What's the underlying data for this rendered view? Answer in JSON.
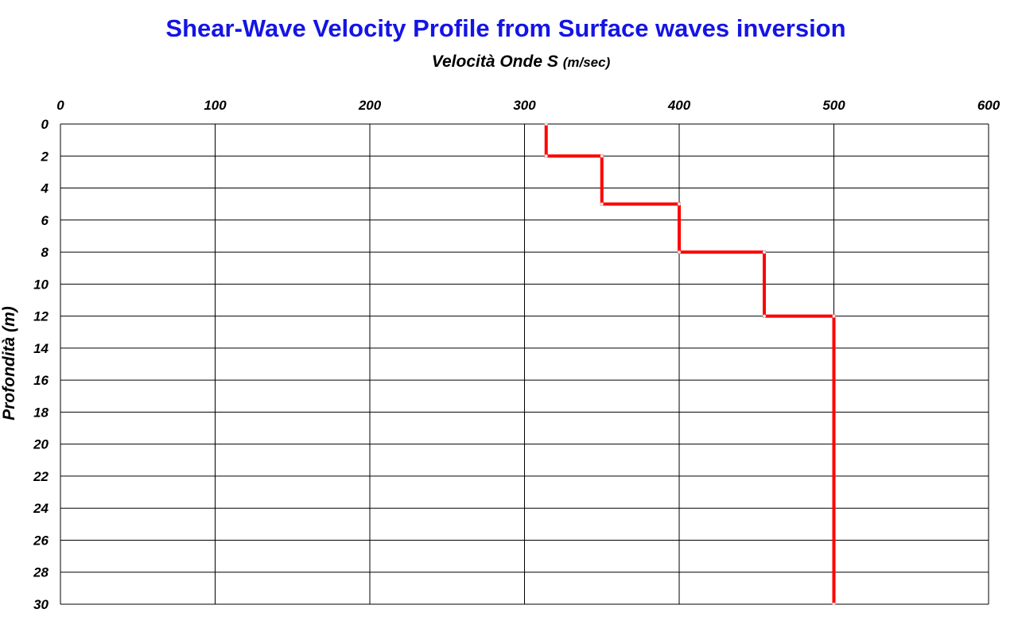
{
  "chart_data": {
    "type": "line",
    "title": "Shear-Wave Velocity Profile from Surface waves inversion",
    "xlabel": "Velocità Onde S",
    "xlabel_unit": "(m/sec)",
    "ylabel": "Profondità",
    "ylabel_unit": "(m)",
    "x_axis_position": "top",
    "y_axis_inverted": true,
    "xlim": [
      0,
      600
    ],
    "ylim": [
      0,
      30
    ],
    "x_ticks": [
      "0",
      "100",
      "200",
      "300",
      "400",
      "500",
      "600"
    ],
    "y_ticks": [
      "0",
      "2",
      "4",
      "6",
      "8",
      "10",
      "12",
      "14",
      "16",
      "18",
      "20",
      "22",
      "24",
      "26",
      "28",
      "30"
    ],
    "grid": true,
    "series": [
      {
        "color": "#ff0000",
        "points": [
          {
            "velocity": 314,
            "depth": 0
          },
          {
            "velocity": 314,
            "depth": 2
          },
          {
            "velocity": 350,
            "depth": 2
          },
          {
            "velocity": 350,
            "depth": 5
          },
          {
            "velocity": 400,
            "depth": 5
          },
          {
            "velocity": 400,
            "depth": 8
          },
          {
            "velocity": 455,
            "depth": 8
          },
          {
            "velocity": 455,
            "depth": 12
          },
          {
            "velocity": 500,
            "depth": 12
          },
          {
            "velocity": 500,
            "depth": 30
          }
        ]
      }
    ]
  },
  "colors": {
    "title": "#1414e6",
    "line": "#ff0000",
    "grid": "#000000"
  }
}
